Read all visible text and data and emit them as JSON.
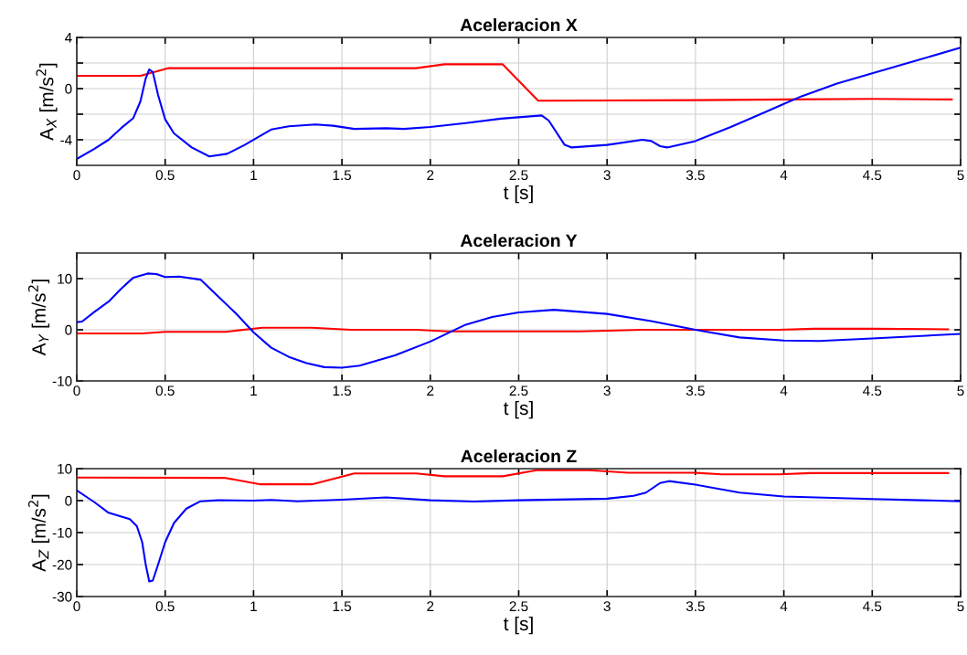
{
  "chart_data": [
    {
      "type": "line",
      "title": "Aceleracion X",
      "xlabel": "t [s]",
      "ylabel": "A$_{X}$ [m/s$^{2}$]",
      "xlim": [
        0,
        5
      ],
      "xticks": [
        0,
        0.5,
        1,
        1.5,
        2,
        2.5,
        3,
        3.5,
        4,
        4.5,
        5
      ],
      "ylim": [
        -6,
        4
      ],
      "yticks": [
        4,
        {
          "value": 2,
          "label": null
        },
        0,
        {
          "value": -2,
          "label": null
        },
        -4
      ],
      "grid": true,
      "series": [
        {
          "color": "#ff0000",
          "x": [
            0,
            0.36,
            0.52,
            1.0,
            1.5,
            1.92,
            2.08,
            2.41,
            2.61,
            3.5,
            4.0,
            4.5,
            4.95
          ],
          "values": [
            1.0,
            1.0,
            1.6,
            1.6,
            1.6,
            1.6,
            1.9,
            1.9,
            -0.95,
            -0.9,
            -0.85,
            -0.8,
            -0.85
          ]
        },
        {
          "color": "#0000ff",
          "x": [
            0,
            0.1,
            0.18,
            0.25,
            0.32,
            0.36,
            0.39,
            0.41,
            0.43,
            0.46,
            0.5,
            0.55,
            0.65,
            0.75,
            0.85,
            0.95,
            1.05,
            1.1,
            1.2,
            1.35,
            1.45,
            1.57,
            1.75,
            1.85,
            2.0,
            2.2,
            2.4,
            2.63,
            2.67,
            2.76,
            2.8,
            3.0,
            3.2,
            3.25,
            3.3,
            3.34,
            3.5,
            3.7,
            3.9,
            4.0,
            4.1,
            4.3,
            4.5,
            4.75,
            5.0
          ],
          "values": [
            -5.5,
            -4.7,
            -4.0,
            -3.1,
            -2.3,
            -1.0,
            0.8,
            1.5,
            1.3,
            -0.5,
            -2.4,
            -3.5,
            -4.6,
            -5.3,
            -5.1,
            -4.4,
            -3.6,
            -3.2,
            -2.95,
            -2.8,
            -2.9,
            -3.15,
            -3.1,
            -3.15,
            -3.0,
            -2.7,
            -2.35,
            -2.1,
            -2.5,
            -4.4,
            -4.6,
            -4.4,
            -4.0,
            -4.1,
            -4.5,
            -4.6,
            -4.1,
            -3.0,
            -1.8,
            -1.2,
            -0.6,
            0.4,
            1.2,
            2.2,
            3.2
          ]
        }
      ]
    },
    {
      "type": "line",
      "title": "Aceleracion Y",
      "xlabel": "t [s]",
      "ylabel": "A$_{Y}$ [m/s$^{2}$]",
      "xlim": [
        0,
        5
      ],
      "xticks": [
        0,
        0.5,
        1,
        1.5,
        2,
        2.5,
        3,
        3.5,
        4,
        4.5,
        5
      ],
      "ylim": [
        -10,
        15
      ],
      "yticks": [
        -10,
        0,
        10
      ],
      "grid": true,
      "series": [
        {
          "color": "#ff0000",
          "x": [
            0,
            0.37,
            0.5,
            0.84,
            1.05,
            1.33,
            1.55,
            1.92,
            2.1,
            2.5,
            2.85,
            3.2,
            3.5,
            3.97,
            4.17,
            4.5,
            4.93
          ],
          "values": [
            -0.7,
            -0.7,
            -0.4,
            -0.4,
            0.4,
            0.4,
            0,
            0,
            -0.3,
            -0.3,
            -0.3,
            0,
            0,
            0,
            0.2,
            0.2,
            0.1
          ]
        },
        {
          "color": "#0000ff",
          "x": [
            0,
            0.03,
            0.1,
            0.18,
            0.25,
            0.32,
            0.4,
            0.45,
            0.5,
            0.58,
            0.7,
            0.8,
            0.9,
            1.0,
            1.1,
            1.2,
            1.3,
            1.4,
            1.5,
            1.6,
            1.8,
            2.0,
            2.2,
            2.35,
            2.5,
            2.7,
            3.0,
            3.25,
            3.5,
            3.75,
            4.0,
            4.2,
            4.5,
            5.0
          ],
          "values": [
            1.5,
            1.6,
            3.5,
            5.5,
            8,
            10.2,
            11,
            10.9,
            10.3,
            10.4,
            9.8,
            6.5,
            3.2,
            -0.5,
            -3.5,
            -5.3,
            -6.5,
            -7.3,
            -7.4,
            -7.0,
            -5,
            -2.3,
            1.0,
            2.5,
            3.4,
            3.9,
            3.1,
            1.7,
            0,
            -1.5,
            -2.1,
            -2.2,
            -1.7,
            -0.8
          ]
        }
      ]
    },
    {
      "type": "line",
      "title": "Aceleracion Z",
      "xlabel": "t [s]",
      "ylabel": "A$_{Z}$ [m/s$^{2}$]",
      "xlim": [
        0,
        5
      ],
      "xticks": [
        0,
        0.5,
        1,
        1.5,
        2,
        2.5,
        3,
        3.5,
        4,
        4.5,
        5
      ],
      "ylim": [
        -30,
        10
      ],
      "yticks": [
        -30,
        -20,
        -10,
        0,
        10
      ],
      "grid": true,
      "series": [
        {
          "color": "#ff0000",
          "x": [
            0,
            0.84,
            1.04,
            1.33,
            1.57,
            1.92,
            2.08,
            2.41,
            2.6,
            2.9,
            3.12,
            3.5,
            3.65,
            3.97,
            4.15,
            4.93
          ],
          "values": [
            7.2,
            7.1,
            5.1,
            5.1,
            8.5,
            8.5,
            7.6,
            7.6,
            9.5,
            9.5,
            8.7,
            8.7,
            8.2,
            8.2,
            8.6,
            8.6
          ]
        },
        {
          "color": "#0000ff",
          "x": [
            0,
            0.1,
            0.18,
            0.3,
            0.34,
            0.37,
            0.39,
            0.41,
            0.43,
            0.46,
            0.5,
            0.55,
            0.62,
            0.7,
            0.8,
            1.0,
            1.1,
            1.25,
            1.5,
            1.75,
            2.0,
            2.25,
            2.5,
            3.0,
            3.15,
            3.22,
            3.3,
            3.35,
            3.5,
            3.75,
            4.0,
            4.5,
            5.0
          ],
          "values": [
            3.2,
            -0.5,
            -3.8,
            -5.8,
            -8,
            -13,
            -20,
            -25.3,
            -25,
            -20,
            -13,
            -7,
            -2.5,
            -0.2,
            0.1,
            0,
            0.2,
            -0.2,
            0.3,
            1.0,
            0.1,
            -0.3,
            0.1,
            0.6,
            1.5,
            2.5,
            5.5,
            6.1,
            5,
            2.5,
            1.3,
            0.5,
            -0.2
          ]
        }
      ]
    }
  ]
}
